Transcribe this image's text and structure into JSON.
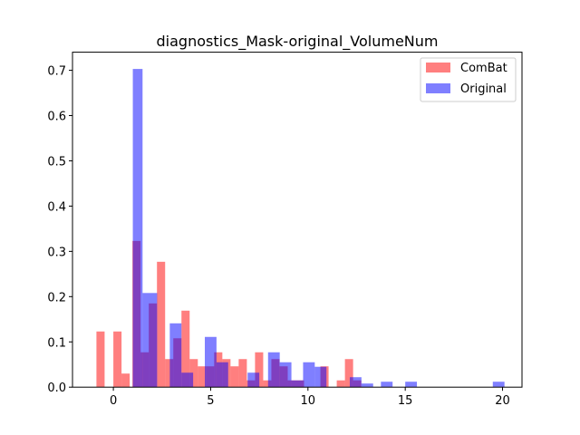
{
  "chart_data": {
    "type": "bar",
    "title": "diagnostics_Mask-original_VolumeNum",
    "xlabel": "",
    "ylabel": "",
    "xlim": [
      -2.1,
      21.0
    ],
    "ylim": [
      0,
      0.74
    ],
    "x_ticks": [
      0,
      5,
      10,
      15,
      20
    ],
    "y_ticks": [
      0.0,
      0.1,
      0.2,
      0.3,
      0.4,
      0.5,
      0.6,
      0.7
    ],
    "legend_position": "top-right",
    "series": [
      {
        "name": "ComBat",
        "color": "#ff0000",
        "alpha": 0.5,
        "bins": [
          {
            "x0": -0.87,
            "x1": -0.45,
            "y": 0.123
          },
          {
            "x0": 0.0,
            "x1": 0.42,
            "y": 0.123
          },
          {
            "x0": 0.42,
            "x1": 0.84,
            "y": 0.03
          },
          {
            "x0": 0.98,
            "x1": 1.4,
            "y": 0.323
          },
          {
            "x0": 1.4,
            "x1": 1.82,
            "y": 0.077
          },
          {
            "x0": 1.82,
            "x1": 2.24,
            "y": 0.185
          },
          {
            "x0": 2.24,
            "x1": 2.66,
            "y": 0.277
          },
          {
            "x0": 2.66,
            "x1": 3.08,
            "y": 0.062
          },
          {
            "x0": 3.08,
            "x1": 3.5,
            "y": 0.108
          },
          {
            "x0": 3.5,
            "x1": 3.92,
            "y": 0.169
          },
          {
            "x0": 3.92,
            "x1": 4.34,
            "y": 0.062
          },
          {
            "x0": 4.34,
            "x1": 4.76,
            "y": 0.046
          },
          {
            "x0": 4.76,
            "x1": 5.18,
            "y": 0.046
          },
          {
            "x0": 5.18,
            "x1": 5.6,
            "y": 0.077
          },
          {
            "x0": 5.6,
            "x1": 6.02,
            "y": 0.062
          },
          {
            "x0": 6.02,
            "x1": 6.44,
            "y": 0.046
          },
          {
            "x0": 6.44,
            "x1": 6.86,
            "y": 0.062
          },
          {
            "x0": 6.86,
            "x1": 7.28,
            "y": 0.015
          },
          {
            "x0": 7.28,
            "x1": 7.7,
            "y": 0.077
          },
          {
            "x0": 7.7,
            "x1": 8.12,
            "y": 0.015
          },
          {
            "x0": 8.12,
            "x1": 8.54,
            "y": 0.062
          },
          {
            "x0": 8.54,
            "x1": 8.96,
            "y": 0.046
          },
          {
            "x0": 8.96,
            "x1": 9.38,
            "y": 0.015
          },
          {
            "x0": 9.38,
            "x1": 9.8,
            "y": 0.015
          },
          {
            "x0": 10.64,
            "x1": 11.06,
            "y": 0.046
          },
          {
            "x0": 11.48,
            "x1": 11.9,
            "y": 0.015
          },
          {
            "x0": 11.9,
            "x1": 12.32,
            "y": 0.062
          },
          {
            "x0": 12.32,
            "x1": 12.74,
            "y": 0.015
          }
        ]
      },
      {
        "name": "Original",
        "color": "#0000ff",
        "alpha": 0.5,
        "bins": [
          {
            "x0": 1.0,
            "x1": 1.5,
            "y": 0.703
          },
          {
            "x0": 1.5,
            "x1": 2.25,
            "y": 0.208
          },
          {
            "x0": 2.9,
            "x1": 3.5,
            "y": 0.141
          },
          {
            "x0": 3.5,
            "x1": 4.1,
            "y": 0.032
          },
          {
            "x0": 4.7,
            "x1": 5.3,
            "y": 0.111
          },
          {
            "x0": 5.3,
            "x1": 5.9,
            "y": 0.055
          },
          {
            "x0": 6.9,
            "x1": 7.5,
            "y": 0.032
          },
          {
            "x0": 7.95,
            "x1": 8.55,
            "y": 0.077
          },
          {
            "x0": 8.55,
            "x1": 9.15,
            "y": 0.055
          },
          {
            "x0": 9.15,
            "x1": 9.75,
            "y": 0.015
          },
          {
            "x0": 9.75,
            "x1": 10.35,
            "y": 0.055
          },
          {
            "x0": 10.35,
            "x1": 10.95,
            "y": 0.045
          },
          {
            "x0": 12.15,
            "x1": 12.75,
            "y": 0.022
          },
          {
            "x0": 12.75,
            "x1": 13.35,
            "y": 0.008
          },
          {
            "x0": 13.75,
            "x1": 14.35,
            "y": 0.012
          },
          {
            "x0": 15.0,
            "x1": 15.6,
            "y": 0.012
          },
          {
            "x0": 19.5,
            "x1": 20.1,
            "y": 0.012
          }
        ]
      }
    ]
  }
}
